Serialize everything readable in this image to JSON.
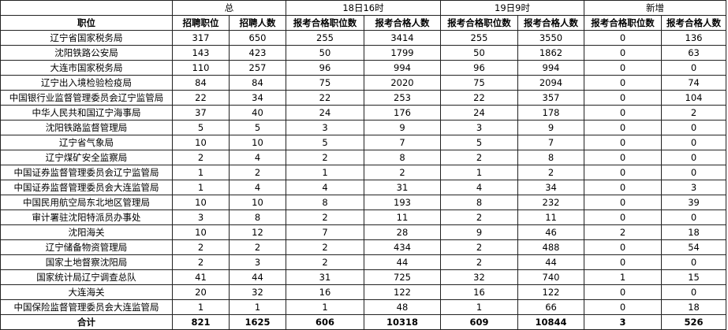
{
  "header": {
    "groups": [
      "总",
      "18日16时",
      "19日9时",
      "新增"
    ],
    "columns": [
      "职位",
      "招聘职位",
      "招聘人数",
      "报考合格职位数",
      "报考合格人数",
      "报考合格职位数",
      "报考合格人数",
      "报考合格职位数",
      "报考合格人数"
    ]
  },
  "rows": [
    [
      "辽宁省国家税务局",
      "317",
      "650",
      "255",
      "3414",
      "255",
      "3550",
      "0",
      "136"
    ],
    [
      "沈阳铁路公安局",
      "143",
      "423",
      "50",
      "1799",
      "50",
      "1862",
      "0",
      "63"
    ],
    [
      "大连市国家税务局",
      "110",
      "257",
      "96",
      "994",
      "96",
      "994",
      "0",
      "0"
    ],
    [
      "辽宁出入境检验检疫局",
      "84",
      "84",
      "75",
      "2020",
      "75",
      "2094",
      "0",
      "74"
    ],
    [
      "中国银行业监督管理委员会辽宁监管局",
      "22",
      "34",
      "22",
      "253",
      "22",
      "357",
      "0",
      "104"
    ],
    [
      "中华人民共和国辽宁海事局",
      "37",
      "40",
      "24",
      "176",
      "24",
      "178",
      "0",
      "2"
    ],
    [
      "沈阳铁路监督管理局",
      "5",
      "5",
      "3",
      "9",
      "3",
      "9",
      "0",
      "0"
    ],
    [
      "辽宁省气象局",
      "10",
      "10",
      "5",
      "7",
      "5",
      "7",
      "0",
      "0"
    ],
    [
      "辽宁煤矿安全监察局",
      "2",
      "4",
      "2",
      "8",
      "2",
      "8",
      "0",
      "0"
    ],
    [
      "中国证券监督管理委员会辽宁监管局",
      "1",
      "2",
      "1",
      "2",
      "1",
      "2",
      "0",
      "0"
    ],
    [
      "中国证券监督管理委员会大连监管局",
      "1",
      "4",
      "4",
      "31",
      "4",
      "34",
      "0",
      "3"
    ],
    [
      "中国民用航空局东北地区管理局",
      "10",
      "10",
      "8",
      "193",
      "8",
      "232",
      "0",
      "39"
    ],
    [
      "审计署驻沈阳特派员办事处",
      "3",
      "8",
      "2",
      "11",
      "2",
      "11",
      "0",
      "0"
    ],
    [
      "沈阳海关",
      "10",
      "12",
      "7",
      "28",
      "9",
      "46",
      "2",
      "18"
    ],
    [
      "辽宁储备物资管理局",
      "2",
      "2",
      "2",
      "434",
      "2",
      "488",
      "0",
      "54"
    ],
    [
      "国家土地督察沈阳局",
      "2",
      "3",
      "2",
      "44",
      "2",
      "44",
      "0",
      "0"
    ],
    [
      "国家统计局辽宁调查总队",
      "41",
      "44",
      "31",
      "725",
      "32",
      "740",
      "1",
      "15"
    ],
    [
      "大连海关",
      "20",
      "32",
      "16",
      "122",
      "16",
      "122",
      "0",
      "0"
    ],
    [
      "中国保险监督管理委员会大连监管局",
      "1",
      "1",
      "1",
      "48",
      "1",
      "66",
      "0",
      "18"
    ]
  ],
  "total": [
    "合计",
    "821",
    "1625",
    "606",
    "10318",
    "609",
    "10844",
    "3",
    "526"
  ]
}
